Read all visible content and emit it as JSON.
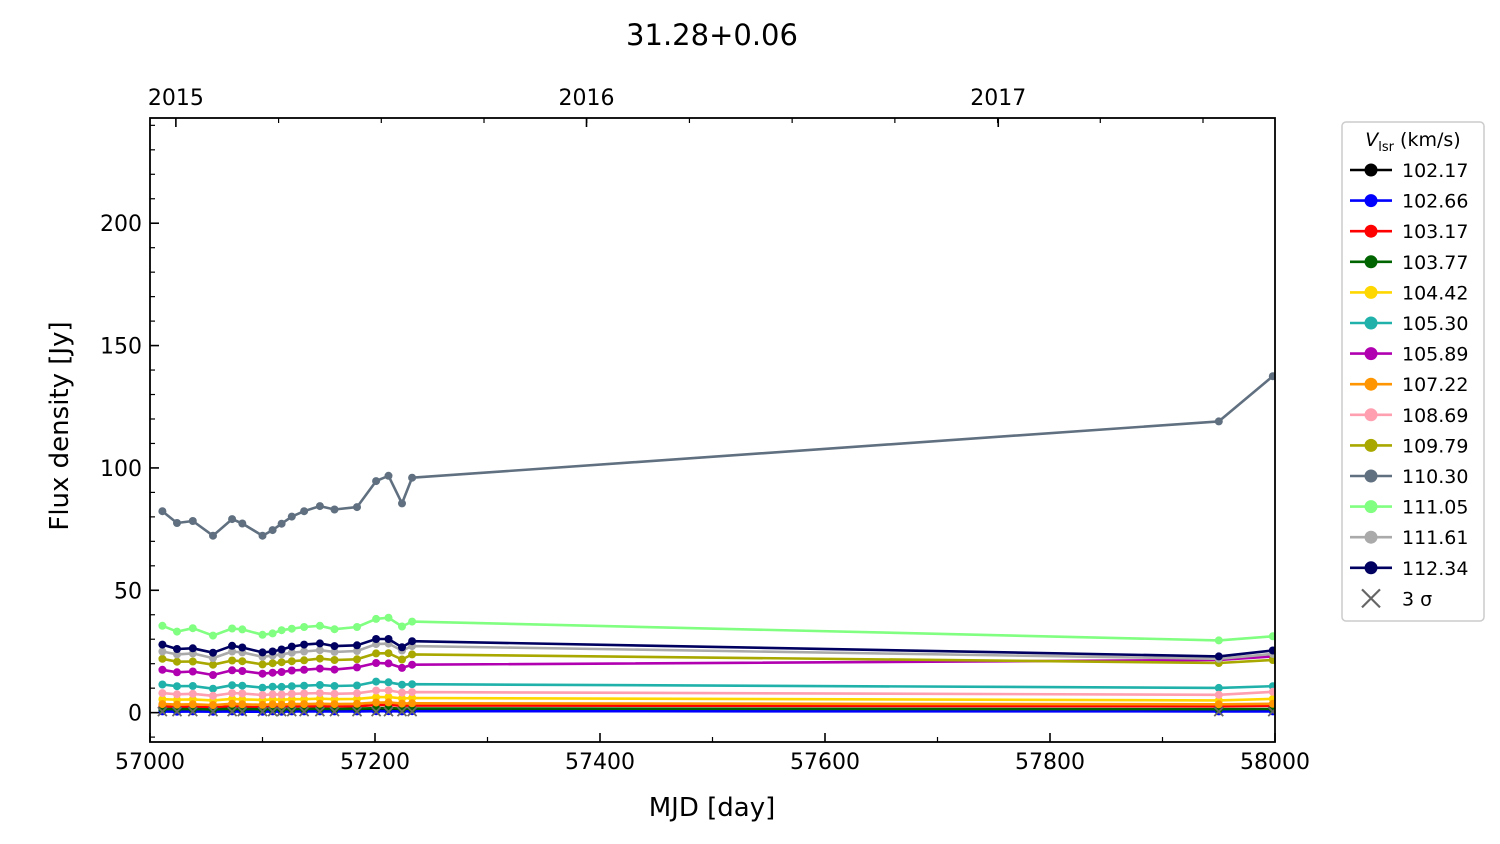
{
  "chart_data": {
    "type": "line",
    "title": "31.28+0.06",
    "xlabel": "MJD [day]",
    "ylabel": "Flux density [Jy]",
    "xlim": [
      57000,
      58000
    ],
    "ylim": [
      -12,
      243
    ],
    "x_ticks": [
      57000,
      57200,
      57400,
      57600,
      57800,
      58000
    ],
    "y_ticks": [
      0,
      50,
      100,
      150,
      200
    ],
    "top_axis_ticks": [
      {
        "label": "2015",
        "mjd": 57023
      },
      {
        "label": "2016",
        "mjd": 57388
      },
      {
        "label": "2017",
        "mjd": 57754
      }
    ],
    "grid": false,
    "legend": {
      "title_main": "V",
      "title_sub": "lsr",
      "title_unit": " (km/s)",
      "placement": "outside-right",
      "sigma_label": "3 σ",
      "sigma_color": "#666666"
    },
    "x": [
      57011,
      57024,
      57038,
      57056,
      57073,
      57082,
      57100,
      57109,
      57117,
      57126,
      57137,
      57151,
      57164,
      57184,
      57201,
      57212,
      57224,
      57233,
      57950,
      57998
    ],
    "series": [
      {
        "name": "102.17",
        "color": "#000000",
        "values": [
          1.0,
          0.9,
          1.0,
          0.8,
          1.1,
          1.0,
          0.9,
          1.0,
          0.9,
          1.0,
          1.0,
          1.1,
          1.0,
          1.1,
          1.3,
          1.3,
          1.1,
          1.2,
          1.0,
          1.1
        ]
      },
      {
        "name": "102.66",
        "color": "#0000ff",
        "values": [
          0.5,
          0.4,
          0.5,
          0.4,
          0.5,
          0.4,
          0.4,
          0.5,
          0.4,
          0.5,
          0.5,
          0.5,
          0.5,
          0.5,
          0.6,
          0.6,
          0.5,
          0.6,
          0.5,
          0.5
        ]
      },
      {
        "name": "103.17",
        "color": "#ff0000",
        "values": [
          2.5,
          2.3,
          2.4,
          2.1,
          2.6,
          2.4,
          2.2,
          2.5,
          2.4,
          2.5,
          2.5,
          2.6,
          2.5,
          2.6,
          3.1,
          3.2,
          2.8,
          2.9,
          2.6,
          2.8
        ]
      },
      {
        "name": "103.77",
        "color": "#006400",
        "values": [
          1.5,
          1.4,
          1.5,
          1.3,
          1.6,
          1.5,
          1.4,
          1.5,
          1.4,
          1.5,
          1.5,
          1.6,
          1.5,
          1.6,
          1.8,
          1.9,
          1.6,
          1.7,
          1.4,
          1.5
        ]
      },
      {
        "name": "104.42",
        "color": "#ffd700",
        "values": [
          5.5,
          5.3,
          5.4,
          5.0,
          5.6,
          5.4,
          5.2,
          5.4,
          5.3,
          5.5,
          5.5,
          5.7,
          5.5,
          5.6,
          6.3,
          6.4,
          5.8,
          6.0,
          5.0,
          5.6
        ]
      },
      {
        "name": "105.30",
        "color": "#20b2aa",
        "values": [
          11.5,
          10.8,
          10.9,
          9.8,
          11.2,
          11.0,
          10.2,
          10.6,
          10.5,
          10.8,
          11.0,
          11.3,
          10.9,
          11.1,
          12.7,
          12.4,
          11.4,
          11.6,
          10.1,
          10.8
        ]
      },
      {
        "name": "105.89",
        "color": "#b000b0",
        "values": [
          17.5,
          16.5,
          16.8,
          15.4,
          17.3,
          17.0,
          15.9,
          16.3,
          16.6,
          17.2,
          17.5,
          18.0,
          17.6,
          18.5,
          20.3,
          20.1,
          18.3,
          19.6,
          21.5,
          23.0
        ]
      },
      {
        "name": "107.22",
        "color": "#ff9500",
        "values": [
          3.5,
          3.3,
          3.4,
          3.1,
          3.6,
          3.4,
          3.2,
          3.4,
          3.3,
          3.5,
          3.5,
          3.6,
          3.5,
          3.6,
          4.1,
          4.2,
          3.7,
          3.8,
          3.4,
          3.6
        ]
      },
      {
        "name": "108.69",
        "color": "#ff9fb0",
        "values": [
          8.0,
          7.5,
          7.7,
          6.9,
          8.0,
          7.8,
          7.2,
          7.5,
          7.4,
          7.7,
          7.8,
          8.0,
          7.7,
          7.9,
          9.0,
          9.1,
          8.2,
          8.4,
          7.3,
          8.5
        ]
      },
      {
        "name": "109.79",
        "color": "#a8a800",
        "values": [
          22.0,
          20.8,
          20.9,
          19.6,
          21.3,
          21.0,
          19.7,
          20.2,
          20.6,
          21.0,
          21.4,
          22.1,
          21.5,
          21.8,
          24.2,
          24.3,
          21.7,
          23.8,
          20.3,
          21.5
        ]
      },
      {
        "name": "110.30",
        "color": "#607080",
        "values": [
          82.3,
          77.5,
          78.3,
          72.3,
          79.1,
          77.3,
          72.3,
          74.6,
          77.2,
          80.1,
          82.3,
          84.4,
          83.0,
          84.0,
          94.6,
          96.8,
          85.5,
          96.0,
          119.0,
          137.5
        ]
      },
      {
        "name": "111.05",
        "color": "#80ff80",
        "values": [
          35.5,
          33.1,
          34.5,
          31.5,
          34.4,
          34.0,
          31.8,
          32.4,
          33.7,
          34.3,
          35.0,
          35.5,
          34.1,
          35.0,
          38.3,
          38.8,
          35.2,
          37.2,
          29.5,
          31.2
        ]
      },
      {
        "name": "111.61",
        "color": "#aaaaaa",
        "values": [
          25.0,
          23.8,
          24.2,
          22.3,
          25.0,
          24.6,
          22.8,
          23.3,
          23.8,
          24.5,
          25.0,
          25.5,
          24.8,
          25.2,
          28.0,
          28.2,
          25.4,
          27.2,
          22.0,
          24.0
        ]
      },
      {
        "name": "112.34",
        "color": "#000060",
        "values": [
          27.8,
          26.0,
          26.3,
          24.5,
          27.3,
          26.6,
          24.6,
          25.0,
          25.8,
          27.0,
          27.8,
          28.3,
          27.2,
          27.5,
          30.1,
          30.1,
          26.7,
          29.2,
          23.0,
          25.4
        ]
      }
    ],
    "sigma_x": [
      57011,
      57024,
      57038,
      57056,
      57073,
      57082,
      57100,
      57109,
      57117,
      57126,
      57137,
      57151,
      57164,
      57184,
      57201,
      57212,
      57224,
      57233,
      57950,
      57998
    ],
    "sigma_values": [
      0.4,
      0.4,
      0.4,
      0.4,
      0.4,
      0.4,
      0.4,
      0.4,
      0.4,
      0.4,
      0.4,
      0.4,
      0.4,
      0.4,
      0.4,
      0.4,
      0.4,
      0.4,
      0.4,
      0.4
    ]
  }
}
